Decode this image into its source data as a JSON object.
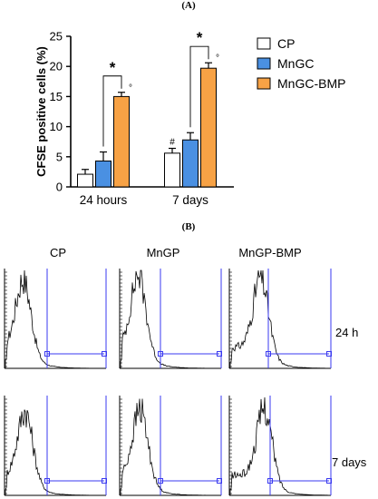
{
  "panel_a_label": "(A)",
  "panel_b_label": "(B)",
  "chart_data": {
    "type": "bar",
    "ylabel": "CFSE positive cells (%)",
    "xlabel": "",
    "ylim": [
      0,
      25
    ],
    "yticks": [
      "0",
      "5",
      "10",
      "15",
      "20",
      "25"
    ],
    "categories": [
      "24 hours",
      "7 days"
    ],
    "series": [
      {
        "name": "CP",
        "color": "#ffffff",
        "values": [
          2.1,
          5.6
        ],
        "errors": [
          0.8,
          0.8
        ]
      },
      {
        "name": "MnGC",
        "color": "#4a90e2",
        "values": [
          4.3,
          7.8
        ],
        "errors": [
          1.5,
          1.2
        ]
      },
      {
        "name": "MnGC-BMP",
        "color": "#f7a245",
        "values": [
          15.0,
          19.7
        ],
        "errors": [
          0.7,
          0.9
        ]
      }
    ],
    "significance": [
      "*",
      "*"
    ],
    "markers": {
      "hash": "#",
      "degree": "°"
    },
    "legend": "right"
  },
  "flow": {
    "columns": [
      "CP",
      "MnGP",
      "MnGP-BMP"
    ],
    "rows": [
      "24 h",
      "7 days"
    ],
    "line_color": "#3a3af0"
  }
}
